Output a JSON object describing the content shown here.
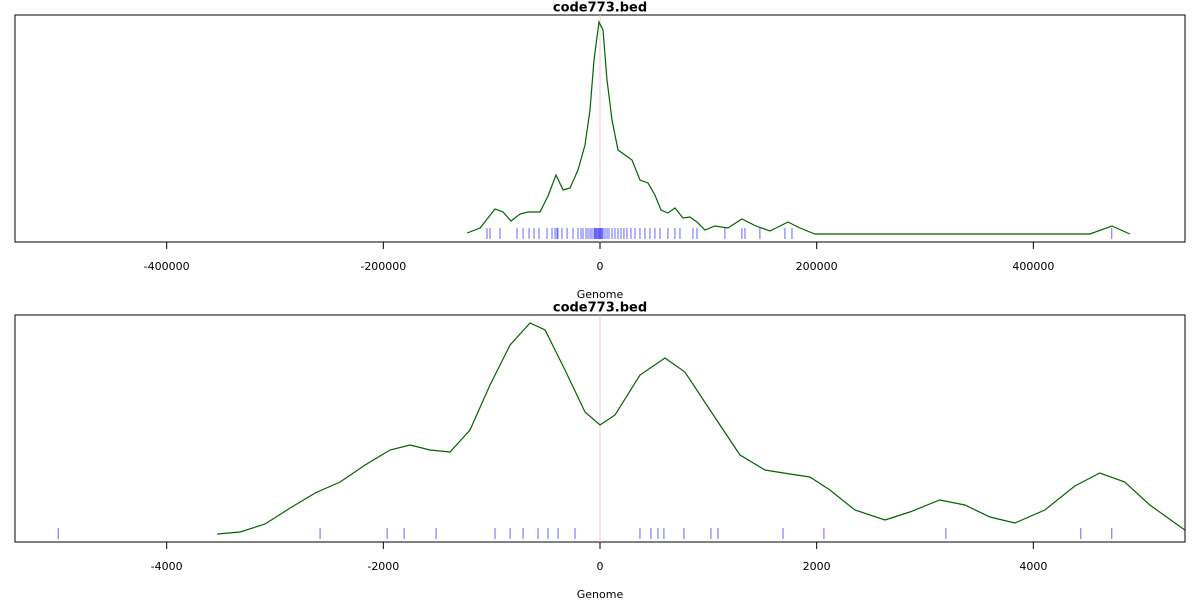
{
  "chart_data": [
    {
      "type": "line",
      "title": "code773.bed",
      "xlabel": "Genome",
      "x": [
        -122700,
        -110700,
        -96900,
        -89500,
        -82100,
        -73800,
        -66400,
        -55400,
        -48000,
        -40600,
        -34100,
        -27700,
        -20300,
        -13800,
        -9200,
        -5500,
        -900,
        2800,
        6500,
        11100,
        16600,
        23100,
        29500,
        36900,
        44300,
        50700,
        56300,
        62700,
        69200,
        76600,
        83000,
        89500,
        96900,
        106100,
        118100,
        131000,
        143900,
        156900,
        173500,
        184500,
        198400,
        452200,
        472500,
        489100
      ],
      "values": [
        1,
        6,
        25,
        22,
        13,
        20,
        22,
        22,
        38,
        59,
        44,
        46,
        64,
        89,
        124,
        174,
        212,
        204,
        154,
        114,
        84,
        79,
        74,
        54,
        51,
        39,
        24,
        21,
        26,
        16,
        17,
        12,
        4,
        8,
        6,
        15,
        8,
        3,
        12,
        6,
        0,
        0,
        8,
        0
      ],
      "rug": [
        -104300,
        -101500,
        -92300,
        -76600,
        -71000,
        -65500,
        -60900,
        -56300,
        -48900,
        -44300,
        -41500,
        -39700,
        -38800,
        -35100,
        -30400,
        -24900,
        -20300,
        -17500,
        -15700,
        -12900,
        -11100,
        -9200,
        -7400,
        -5500,
        -4600,
        -3700,
        -2800,
        -1800,
        -900,
        0,
        900,
        1800,
        2800,
        4600,
        6500,
        8300,
        11100,
        13800,
        16600,
        19400,
        22100,
        24900,
        28600,
        32300,
        36900,
        41500,
        46100,
        50700,
        55400,
        62700,
        69200,
        73800,
        85800,
        89500,
        115300,
        131000,
        133800,
        147600,
        170700,
        177200,
        472400
      ],
      "color": "#006400",
      "rug_color": "#0000ff",
      "vline": 0,
      "xlim": [
        -540000,
        540000
      ],
      "ylim": [
        -8,
        219
      ],
      "xticks": [
        -400000,
        -200000,
        0,
        200000,
        400000
      ]
    },
    {
      "type": "line",
      "title": "code773.bed",
      "xlabel": "Genome",
      "x": [
        -3534,
        -3322,
        -3091,
        -2860,
        -2630,
        -2399,
        -2168,
        -1938,
        -1753,
        -1569,
        -1384,
        -1200,
        -1015,
        -830,
        -646,
        -507,
        -323,
        -138,
        0,
        138,
        369,
        600,
        784,
        1015,
        1292,
        1522,
        1753,
        1938,
        2122,
        2353,
        2630,
        2860,
        3137,
        3368,
        3599,
        3829,
        4106,
        4383,
        4614,
        4844,
        5075,
        5398
      ],
      "values": [
        0,
        2,
        10,
        26,
        41,
        52,
        69,
        84,
        89,
        84,
        82,
        104,
        149,
        189,
        211,
        204,
        164,
        122,
        109,
        119,
        159,
        176,
        162,
        124,
        79,
        64,
        60,
        57,
        44,
        24,
        14,
        22,
        34,
        29,
        17,
        11,
        24,
        48,
        61,
        52,
        29,
        4
      ],
      "rug": [
        -5001,
        -2584,
        -1965,
        -1808,
        -1513,
        -969,
        -830,
        -710,
        -572,
        -480,
        -387,
        -231,
        369,
        470,
        535,
        590,
        775,
        1024,
        1089,
        1689,
        2067,
        3193,
        4438,
        4724
      ],
      "color": "#006400",
      "rug_color": "#0000ff",
      "vline": 0,
      "xlim": [
        -5400,
        5400
      ],
      "ylim": [
        -8,
        219
      ],
      "xticks": [
        -4000,
        -2000,
        0,
        2000,
        4000
      ]
    }
  ]
}
